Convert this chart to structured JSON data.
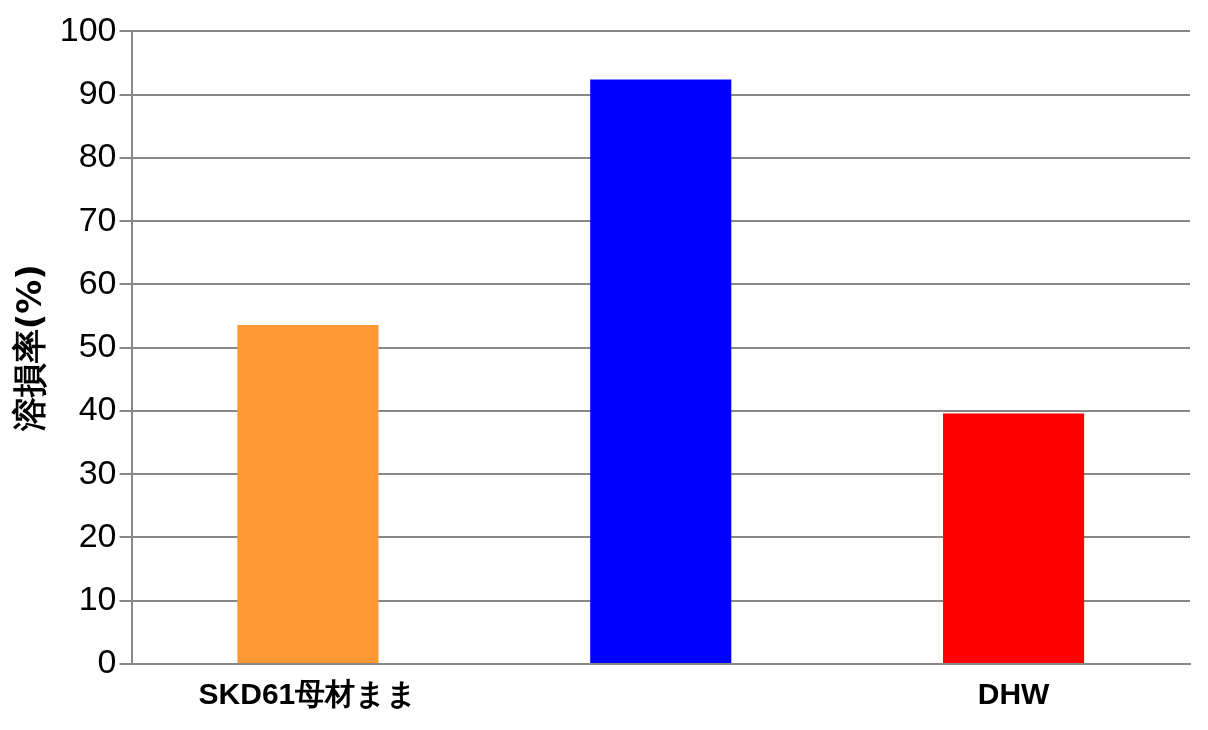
{
  "chart_data": {
    "type": "bar",
    "ylabel": "溶損率(%)",
    "categories": [
      "SKD61母材まま",
      null,
      "DHW"
    ],
    "values": [
      53.6,
      92.4,
      39.6
    ],
    "colors": [
      "#ff9933",
      "#0000ff",
      "#ff0000"
    ],
    "ylim": [
      0,
      100
    ],
    "yticks": [
      0,
      10,
      20,
      30,
      40,
      50,
      60,
      70,
      80,
      90,
      100
    ],
    "grid": "y",
    "legend": false
  }
}
